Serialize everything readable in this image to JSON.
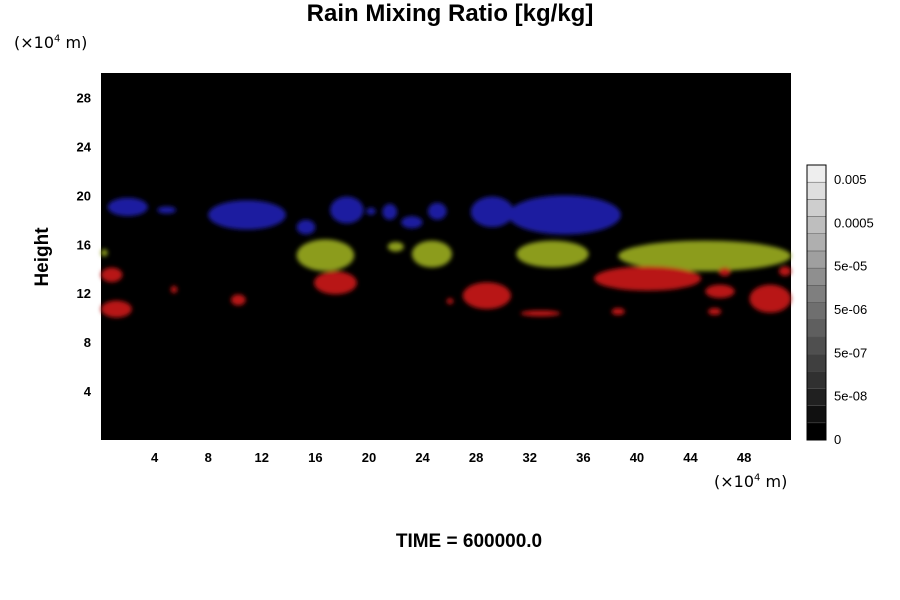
{
  "chart_data": {
    "type": "heatmap",
    "title": "Rain Mixing Ratio [kg/kg]",
    "ylabel": "Height",
    "y_unit_prefix": "(×10",
    "y_unit_exp": "4",
    "y_unit_suffix": " m)",
    "x_unit_prefix": "(×10",
    "x_unit_exp": "4",
    "x_unit_suffix": " m)",
    "footer": "TIME = 600000.0",
    "xlim": [
      0,
      51.5
    ],
    "ylim": [
      0,
      30
    ],
    "x_ticks": [
      4,
      8,
      12,
      16,
      20,
      24,
      28,
      32,
      36,
      40,
      44,
      48
    ],
    "y_ticks": [
      4,
      8,
      12,
      16,
      20,
      24,
      28
    ],
    "background_color": "#000000",
    "colorbar": {
      "labels": [
        "0.005",
        "0.0005",
        "5e-05",
        "5e-06",
        "5e-07",
        "5e-08",
        "0"
      ],
      "levels": 16
    },
    "regions": [
      {
        "color": "#1f1fa0",
        "shapes": [
          {
            "x": [
              0.5,
              3.5
            ],
            "y": [
              18.3,
              19.8
            ]
          },
          {
            "x": [
              4.2,
              5.6
            ],
            "y": [
              18.5,
              19.1
            ]
          },
          {
            "x": [
              8.0,
              13.8
            ],
            "y": [
              17.2,
              19.6
            ]
          },
          {
            "x": [
              14.6,
              16.0
            ],
            "y": [
              16.8,
              18.0
            ]
          },
          {
            "x": [
              17.1,
              19.6
            ],
            "y": [
              17.7,
              19.9
            ]
          },
          {
            "x": [
              19.8,
              20.5
            ],
            "y": [
              18.4,
              19.0
            ]
          },
          {
            "x": [
              21.0,
              22.1
            ],
            "y": [
              18.0,
              19.3
            ]
          },
          {
            "x": [
              22.4,
              24.0
            ],
            "y": [
              17.3,
              18.3
            ]
          },
          {
            "x": [
              24.4,
              25.8
            ],
            "y": [
              18.0,
              19.4
            ]
          },
          {
            "x": [
              27.6,
              30.8
            ],
            "y": [
              17.4,
              19.9
            ]
          },
          {
            "x": [
              30.4,
              38.8
            ],
            "y": [
              16.8,
              20.0
            ]
          }
        ]
      },
      {
        "color": "#8c9c1c",
        "shapes": [
          {
            "x": [
              14.6,
              18.9
            ],
            "y": [
              13.8,
              16.4
            ]
          },
          {
            "x": [
              21.4,
              22.6
            ],
            "y": [
              15.4,
              16.2
            ]
          },
          {
            "x": [
              23.2,
              26.2
            ],
            "y": [
              14.1,
              16.3
            ]
          },
          {
            "x": [
              31.0,
              36.4
            ],
            "y": [
              14.1,
              16.3
            ]
          },
          {
            "x": [
              38.6,
              51.5
            ],
            "y": [
              13.8,
              16.3
            ]
          },
          {
            "x": [
              0.0,
              0.5
            ],
            "y": [
              15.0,
              15.6
            ]
          }
        ]
      },
      {
        "color": "#b81212",
        "shapes": [
          {
            "x": [
              0.0,
              1.6
            ],
            "y": [
              12.9,
              14.1
            ]
          },
          {
            "x": [
              0.0,
              2.3
            ],
            "y": [
              10.0,
              11.4
            ]
          },
          {
            "x": [
              5.2,
              5.7
            ],
            "y": [
              12.0,
              12.6
            ]
          },
          {
            "x": [
              9.7,
              10.8
            ],
            "y": [
              11.0,
              11.9
            ]
          },
          {
            "x": [
              15.9,
              19.1
            ],
            "y": [
              11.9,
              13.8
            ]
          },
          {
            "x": [
              25.8,
              26.3
            ],
            "y": [
              11.1,
              11.6
            ]
          },
          {
            "x": [
              27.0,
              30.6
            ],
            "y": [
              10.7,
              12.9
            ]
          },
          {
            "x": [
              31.3,
              34.3
            ],
            "y": [
              10.1,
              10.6
            ]
          },
          {
            "x": [
              38.1,
              39.1
            ],
            "y": [
              10.2,
              10.8
            ]
          },
          {
            "x": [
              36.8,
              44.8
            ],
            "y": [
              12.2,
              14.2
            ]
          },
          {
            "x": [
              45.1,
              47.3
            ],
            "y": [
              11.6,
              12.7
            ]
          },
          {
            "x": [
              45.3,
              46.3
            ],
            "y": [
              10.2,
              10.8
            ]
          },
          {
            "x": [
              48.4,
              51.5
            ],
            "y": [
              10.4,
              12.7
            ]
          },
          {
            "x": [
              46.1,
              47.0
            ],
            "y": [
              13.4,
              14.1
            ]
          },
          {
            "x": [
              50.6,
              51.5
            ],
            "y": [
              13.4,
              14.2
            ]
          }
        ]
      }
    ]
  }
}
